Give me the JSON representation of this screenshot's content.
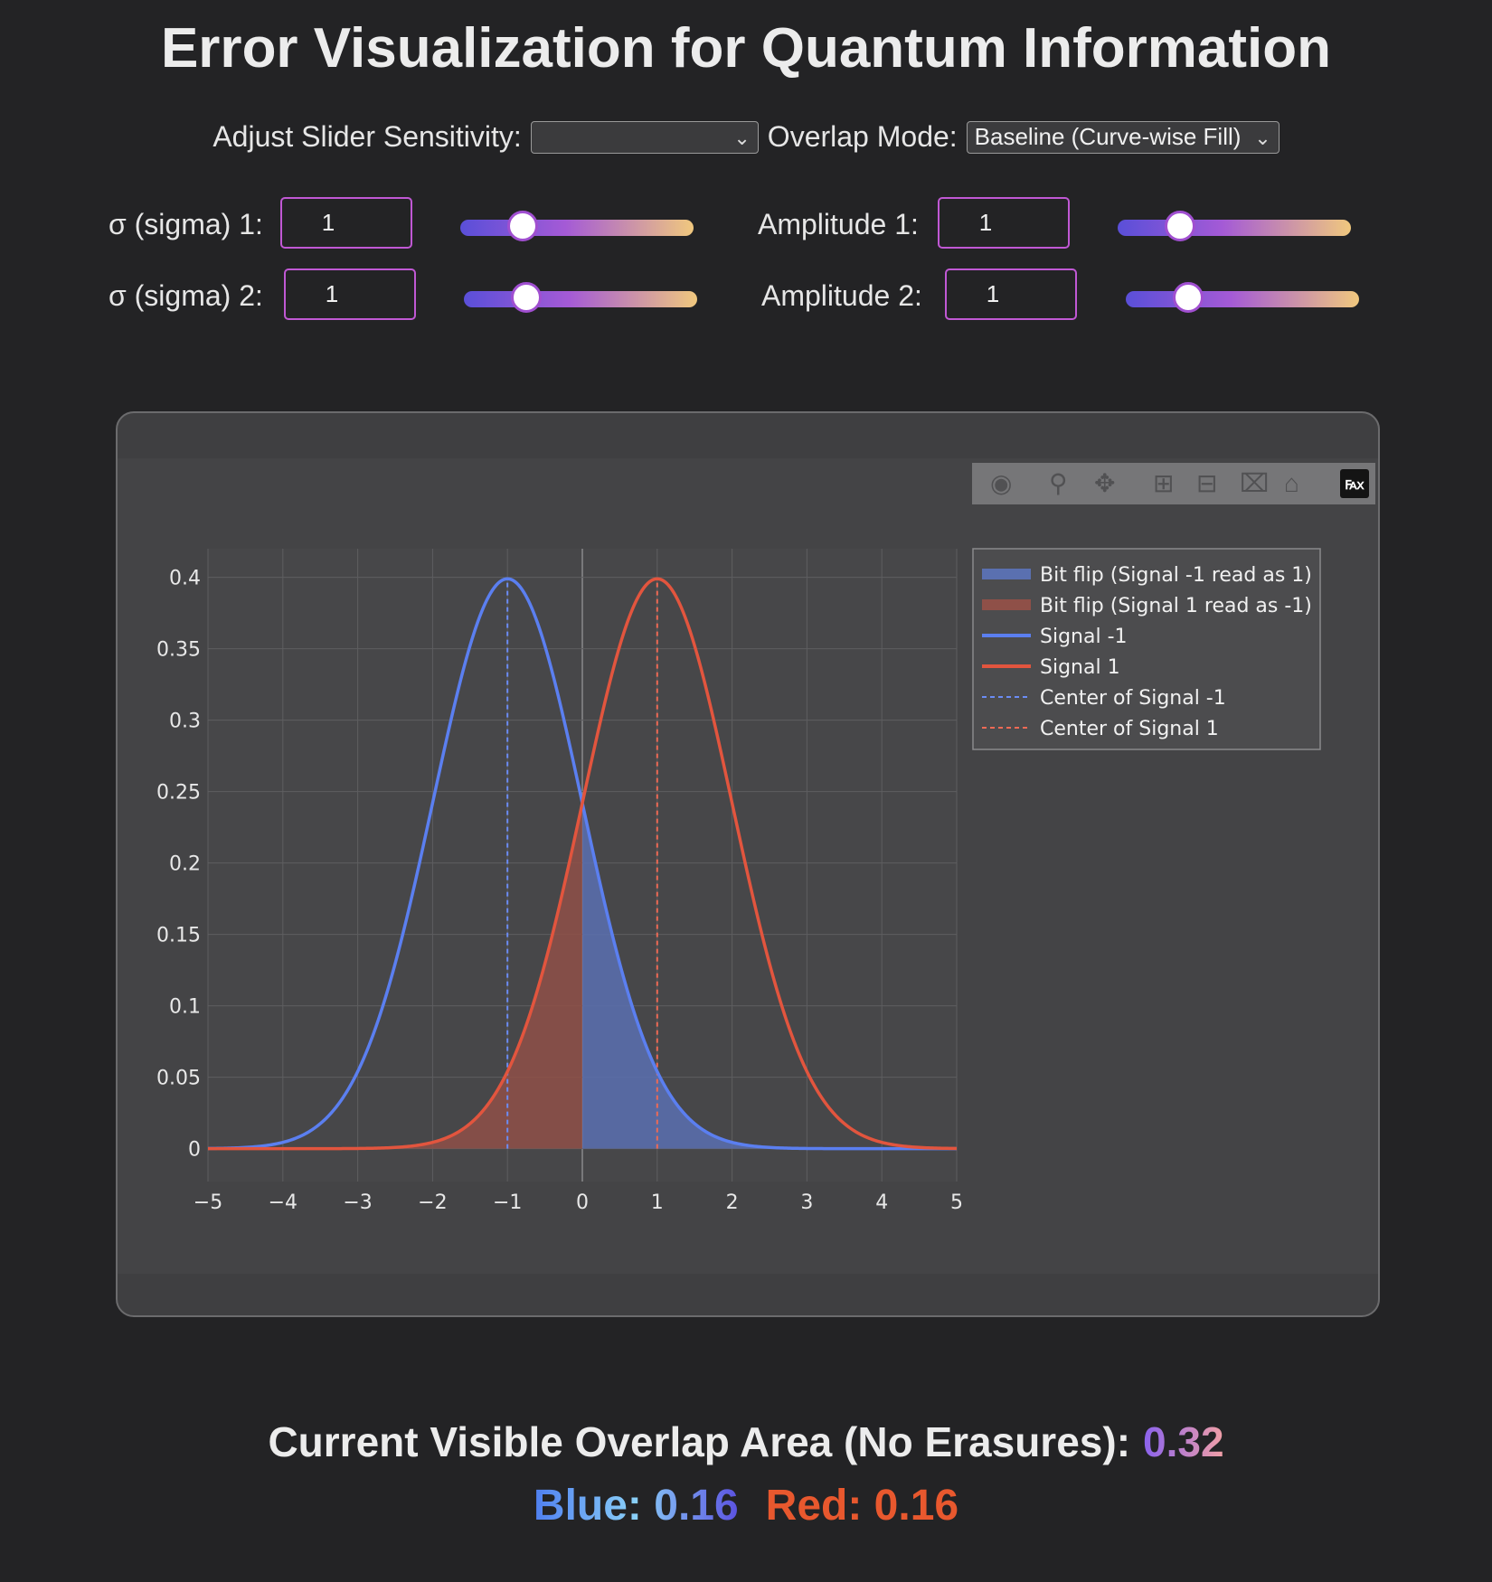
{
  "title": "Error Visualization for Quantum Information",
  "controls": {
    "sensitivity_label": "Adjust Slider Sensitivity:",
    "sensitivity_value": "",
    "overlap_label": "Overlap Mode:",
    "overlap_value": "Baseline (Curve-wise Fill)"
  },
  "params": {
    "sigma1_label": "σ (sigma) 1:",
    "sigma1_value": "1",
    "sigma1_slider_fraction": 0.15,
    "amp1_label": "Amplitude 1:",
    "amp1_value": "1",
    "amp1_slider_fraction": 0.15,
    "sigma2_label": "σ (sigma) 2:",
    "sigma2_value": "1",
    "sigma2_slider_fraction": 0.15,
    "amp2_label": "Amplitude 2:",
    "amp2_value": "1",
    "amp2_slider_fraction": 0.15
  },
  "toolbar_icons": [
    "camera-icon",
    "zoom-icon",
    "pan-icon",
    "zoom-in-icon",
    "zoom-out-icon",
    "autoscale-icon",
    "reset-axes-icon",
    "plotly-logo-icon"
  ],
  "chart_data": {
    "type": "line",
    "x_ticks": [
      "−5",
      "−4",
      "−3",
      "−2",
      "−1",
      "0",
      "1",
      "2",
      "3",
      "4",
      "5"
    ],
    "y_ticks": [
      "0",
      "0.05",
      "0.1",
      "0.15",
      "0.2",
      "0.25",
      "0.3",
      "0.35",
      "0.4"
    ],
    "xlim": [
      -5,
      5
    ],
    "ylim": [
      -0.023,
      0.42
    ],
    "grid": true,
    "legend_position": "top-right outside",
    "series": [
      {
        "name": "Signal -1",
        "kind": "gaussian",
        "mu": -1,
        "sigma": 1,
        "amplitude": 1,
        "color": "#5b7ff0"
      },
      {
        "name": "Signal 1",
        "kind": "gaussian",
        "mu": 1,
        "sigma": 1,
        "amplitude": 1,
        "color": "#e2553e"
      }
    ],
    "fills": [
      {
        "name": "Bit flip (Signal -1 read as 1)",
        "from_x": 0,
        "to_x": 5,
        "under": "Signal -1",
        "color": "#5a70b0"
      },
      {
        "name": "Bit flip (Signal 1 read as -1)",
        "from_x": -5,
        "to_x": 0,
        "under": "Signal 1",
        "color": "#8f5048"
      }
    ],
    "center_lines": [
      {
        "name": "Center of Signal -1",
        "x": -1,
        "color": "#6b8cf5"
      },
      {
        "name": "Center of Signal 1",
        "x": 1,
        "color": "#ee6a55"
      }
    ],
    "legend": [
      {
        "label": "Bit flip (Signal -1 read as 1)",
        "style": "fill",
        "color": "#5a70b0"
      },
      {
        "label": "Bit flip (Signal 1 read as -1)",
        "style": "fill",
        "color": "#8f5048"
      },
      {
        "label": "Signal -1",
        "style": "line",
        "color": "#5b7ff0"
      },
      {
        "label": "Signal 1",
        "style": "line",
        "color": "#e2553e"
      },
      {
        "label": "Center of Signal -1",
        "style": "dash",
        "color": "#6b8cf5"
      },
      {
        "label": "Center of Signal 1",
        "style": "dash",
        "color": "#ee6a55"
      }
    ]
  },
  "summary": {
    "overlap_label": "Current Visible Overlap Area (No Erasures):",
    "overlap_value": "0.32",
    "blue_label": "Blue: 0.16",
    "red_label": "Red: 0.16"
  }
}
